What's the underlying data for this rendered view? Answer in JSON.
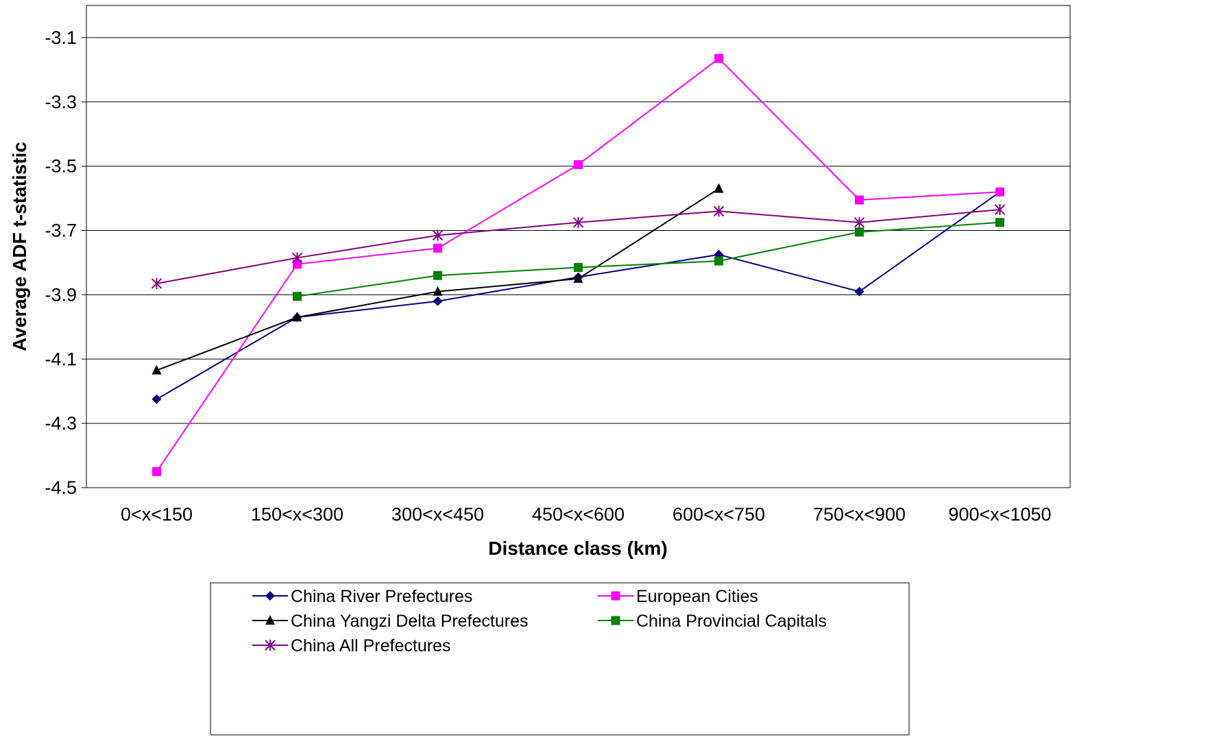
{
  "chart_data": {
    "type": "line",
    "title": "",
    "xlabel": "Distance class (km)",
    "ylabel": "Average ADF t-statistic",
    "categories": [
      "0<x<150",
      "150<x<300",
      "300<x<450",
      "450<x<600",
      "600<x<750",
      "750<x<900",
      "900<x<1050"
    ],
    "ylim": [
      -4.5,
      -3.0
    ],
    "yticks": [
      "-3.1",
      "-3.3",
      "-3.5",
      "-3.7",
      "-3.9",
      "-4.1",
      "-4.3",
      "-4.5"
    ],
    "grid": "horizontal",
    "legend_position": "bottom",
    "series": [
      {
        "name": "China River Prefectures",
        "color": "#000080",
        "marker": "diamond",
        "values": [
          -4.225,
          -3.97,
          -3.92,
          -3.845,
          -3.775,
          -3.89,
          -3.58
        ]
      },
      {
        "name": "European Cities",
        "color": "#FF00FF",
        "marker": "square",
        "values": [
          -4.45,
          -3.805,
          -3.755,
          -3.495,
          -3.165,
          -3.605,
          -3.58
        ]
      },
      {
        "name": "China Yangzi Delta Prefectures",
        "color": "#000000",
        "marker": "triangle",
        "values": [
          -4.135,
          -3.97,
          -3.89,
          -3.85,
          -3.57,
          null,
          null
        ]
      },
      {
        "name": "China Provincial Capitals",
        "color": "#008000",
        "marker": "square",
        "values": [
          null,
          -3.905,
          -3.84,
          -3.815,
          -3.795,
          -3.705,
          -3.675
        ]
      },
      {
        "name": "China All Prefectures",
        "color": "#800080",
        "marker": "asterisk",
        "values": [
          -3.865,
          -3.785,
          -3.715,
          -3.675,
          -3.64,
          -3.675,
          -3.635
        ]
      }
    ]
  }
}
